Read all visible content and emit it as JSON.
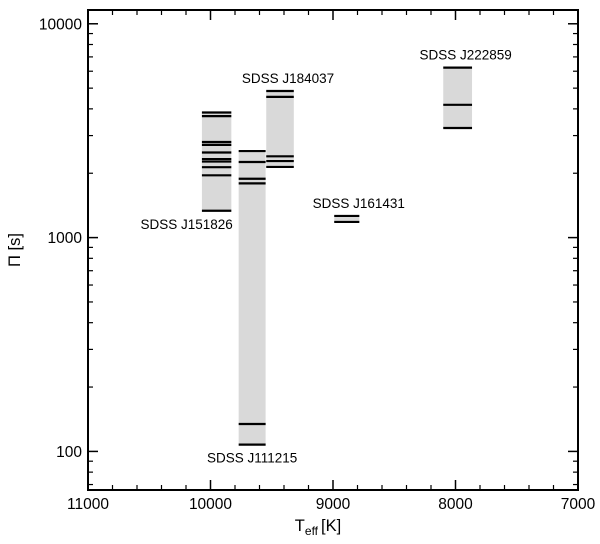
{
  "figure": {
    "background": "#ffffff",
    "frame_color": "#000000",
    "box_fill": "#d9d9d9",
    "period_line_color": "#000000",
    "text_color": "#000000"
  },
  "chart_data": {
    "type": "scatter",
    "subtype": "period-range-strips",
    "title": "",
    "xlabel": "T_eff [K]",
    "xlabel_base": "T",
    "xlabel_sub": "eff",
    "xlabel_unit": "[K]",
    "ylabel": "Π [s]",
    "x_axis": {
      "min": 7000,
      "max": 11000,
      "reversed": true,
      "major_ticks": [
        11000,
        10000,
        9000,
        8000,
        7000
      ],
      "tick_labels": [
        "11000",
        "10000",
        "9000",
        "8000",
        "7000"
      ],
      "minor_step": 200
    },
    "y_axis": {
      "scale": "log",
      "min": 66,
      "max": 11600,
      "major_ticks": [
        100,
        1000,
        10000
      ],
      "tick_labels": [
        "100",
        "1000",
        "10000"
      ],
      "minor_mantissas": [
        2,
        3,
        4,
        5,
        6,
        7,
        8,
        9
      ]
    },
    "stars": [
      {
        "name": "SDSS J151826",
        "teff_range": [
          10070,
          9830
        ],
        "periods": [
          1335,
          1956,
          2134,
          2268,
          2330,
          2500,
          2714,
          2799,
          3700,
          3848
        ],
        "label_side": "below",
        "label_dx": -30
      },
      {
        "name": "SDSS J111215",
        "teff_range": [
          9770,
          9550
        ],
        "periods": [
          107.6,
          134.3,
          1793,
          1885,
          2258,
          2540
        ],
        "label_side": "below",
        "label_dx": 0
      },
      {
        "name": "SDSS J184037",
        "teff_range": [
          9545,
          9320
        ],
        "periods": [
          2140,
          2280,
          2400,
          4550,
          4850
        ],
        "label_side": "above",
        "label_dx": 8
      },
      {
        "name": "SDSS J161431",
        "teff_range": [
          8990,
          8785
        ],
        "periods": [
          1184,
          1263
        ],
        "label_side": "above",
        "label_dx": 12
      },
      {
        "name": "SDSS J222859",
        "teff_range": [
          8100,
          7865
        ],
        "periods": [
          3254,
          4178,
          6235
        ],
        "label_side": "above",
        "label_dx": 8
      }
    ]
  }
}
